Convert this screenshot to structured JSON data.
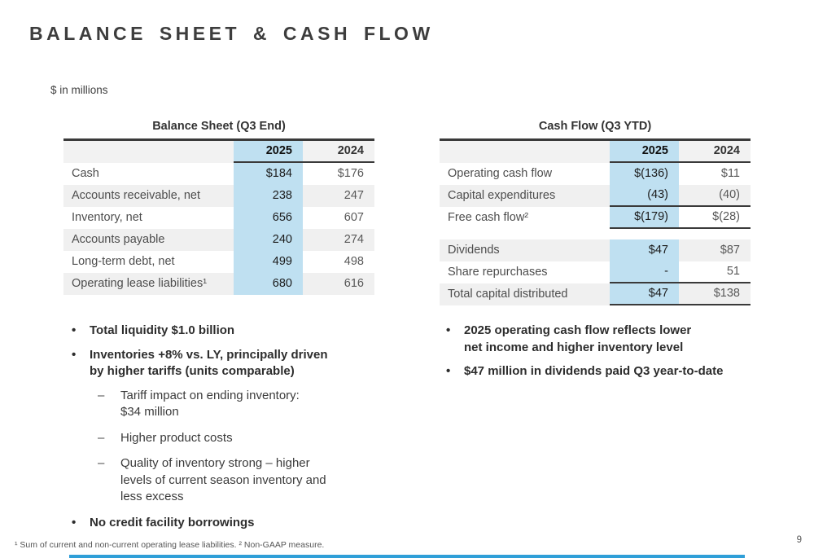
{
  "slide": {
    "title": "BALANCE SHEET & CASH FLOW",
    "note": "$ in millions",
    "footnote": "¹ Sum of current and non-current operating lease liabilities.  ² Non-GAAP measure.",
    "page_number": "9"
  },
  "markers": {
    "bullet": "•",
    "dash": "–"
  },
  "colors": {
    "highlight_blue": "#bfe0f1",
    "stripe_gray": "#f0f0f0",
    "rule_dark": "#3a3a3a",
    "accent_bar_blue": "#2f9fd8"
  },
  "balance_sheet": {
    "title": "Balance Sheet (Q3 End)",
    "headers": [
      "2025",
      "2024"
    ],
    "rows": [
      {
        "label": "Cash",
        "y2025": "$184",
        "y2024": "$176"
      },
      {
        "label": "Accounts receivable, net",
        "y2025": "238",
        "y2024": "247"
      },
      {
        "label": "Inventory, net",
        "y2025": "656",
        "y2024": "607"
      },
      {
        "label": "Accounts payable",
        "y2025": "240",
        "y2024": "274"
      },
      {
        "label": "Long-term debt, net",
        "y2025": "499",
        "y2024": "498"
      },
      {
        "label": "Operating lease liabilities¹",
        "y2025": "680",
        "y2024": "616"
      }
    ]
  },
  "cash_flow": {
    "title": "Cash Flow (Q3 YTD)",
    "headers": [
      "2025",
      "2024"
    ],
    "rows_top": [
      {
        "label": "Operating cash flow",
        "y2025": "$(136)",
        "y2024": "$11"
      },
      {
        "label": "Capital expenditures",
        "y2025": "(43)",
        "y2024": "(40)"
      },
      {
        "label": "Free cash flow²",
        "y2025": "$(179)",
        "y2024": "$(28)"
      }
    ],
    "rows_bottom": [
      {
        "label": "Dividends",
        "y2025": "$47",
        "y2024": "$87"
      },
      {
        "label": "Share repurchases",
        "y2025": "-",
        "y2024": "51"
      },
      {
        "label": "Total capital distributed",
        "y2025": "$47",
        "y2024": "$138"
      }
    ]
  },
  "left_bullets": [
    {
      "lines": [
        "Total liquidity $1.0 billion"
      ]
    },
    {
      "lines": [
        "Inventories +8% vs. LY, principally driven",
        "by higher tariffs (units comparable)"
      ]
    },
    {
      "lines": [
        "Tariff impact on ending inventory:",
        "$34 million"
      ]
    },
    {
      "lines": [
        "Higher product costs"
      ]
    },
    {
      "lines": [
        "Quality of inventory strong – higher",
        "levels of current season inventory and",
        "less excess"
      ]
    },
    {
      "lines": [
        "No credit facility borrowings"
      ]
    }
  ],
  "right_bullets": [
    {
      "lines": [
        "2025 operating cash flow reflects lower",
        "net income and higher inventory level"
      ]
    },
    {
      "lines": [
        "$47 million in dividends paid Q3 year-to-date"
      ]
    }
  ]
}
